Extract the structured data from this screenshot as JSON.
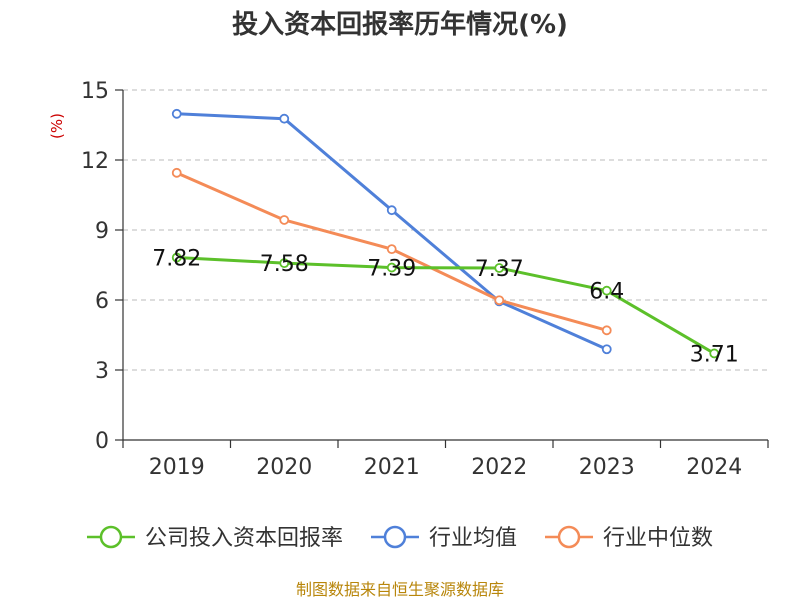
{
  "chart_data": {
    "type": "line",
    "title": "投入资本回报率历年情况(%)",
    "ylabel": "(%)",
    "xlabel": "",
    "categories": [
      "2019",
      "2020",
      "2021",
      "2022",
      "2023",
      "2024"
    ],
    "y_ticks": [
      "0",
      "3",
      "6",
      "9",
      "12",
      "15"
    ],
    "ylim": [
      0,
      15
    ],
    "grid": true,
    "legend_position": "bottom",
    "series": [
      {
        "name": "公司投入资本回报率",
        "color": "#5cc02a",
        "values": [
          7.82,
          7.58,
          7.39,
          7.37,
          6.4,
          3.71
        ],
        "labels": [
          "7.82",
          "7.58",
          "7.39",
          "7.37",
          "6.4",
          "3.71"
        ]
      },
      {
        "name": "行业均值",
        "color": "#4f80d9",
        "values": [
          13.98,
          13.77,
          9.85,
          5.94,
          3.89,
          null
        ]
      },
      {
        "name": "行业中位数",
        "color": "#f48b57",
        "values": [
          11.45,
          9.43,
          8.18,
          5.99,
          4.7,
          null
        ]
      }
    ],
    "source": "制图数据来自恒生聚源数据库"
  }
}
